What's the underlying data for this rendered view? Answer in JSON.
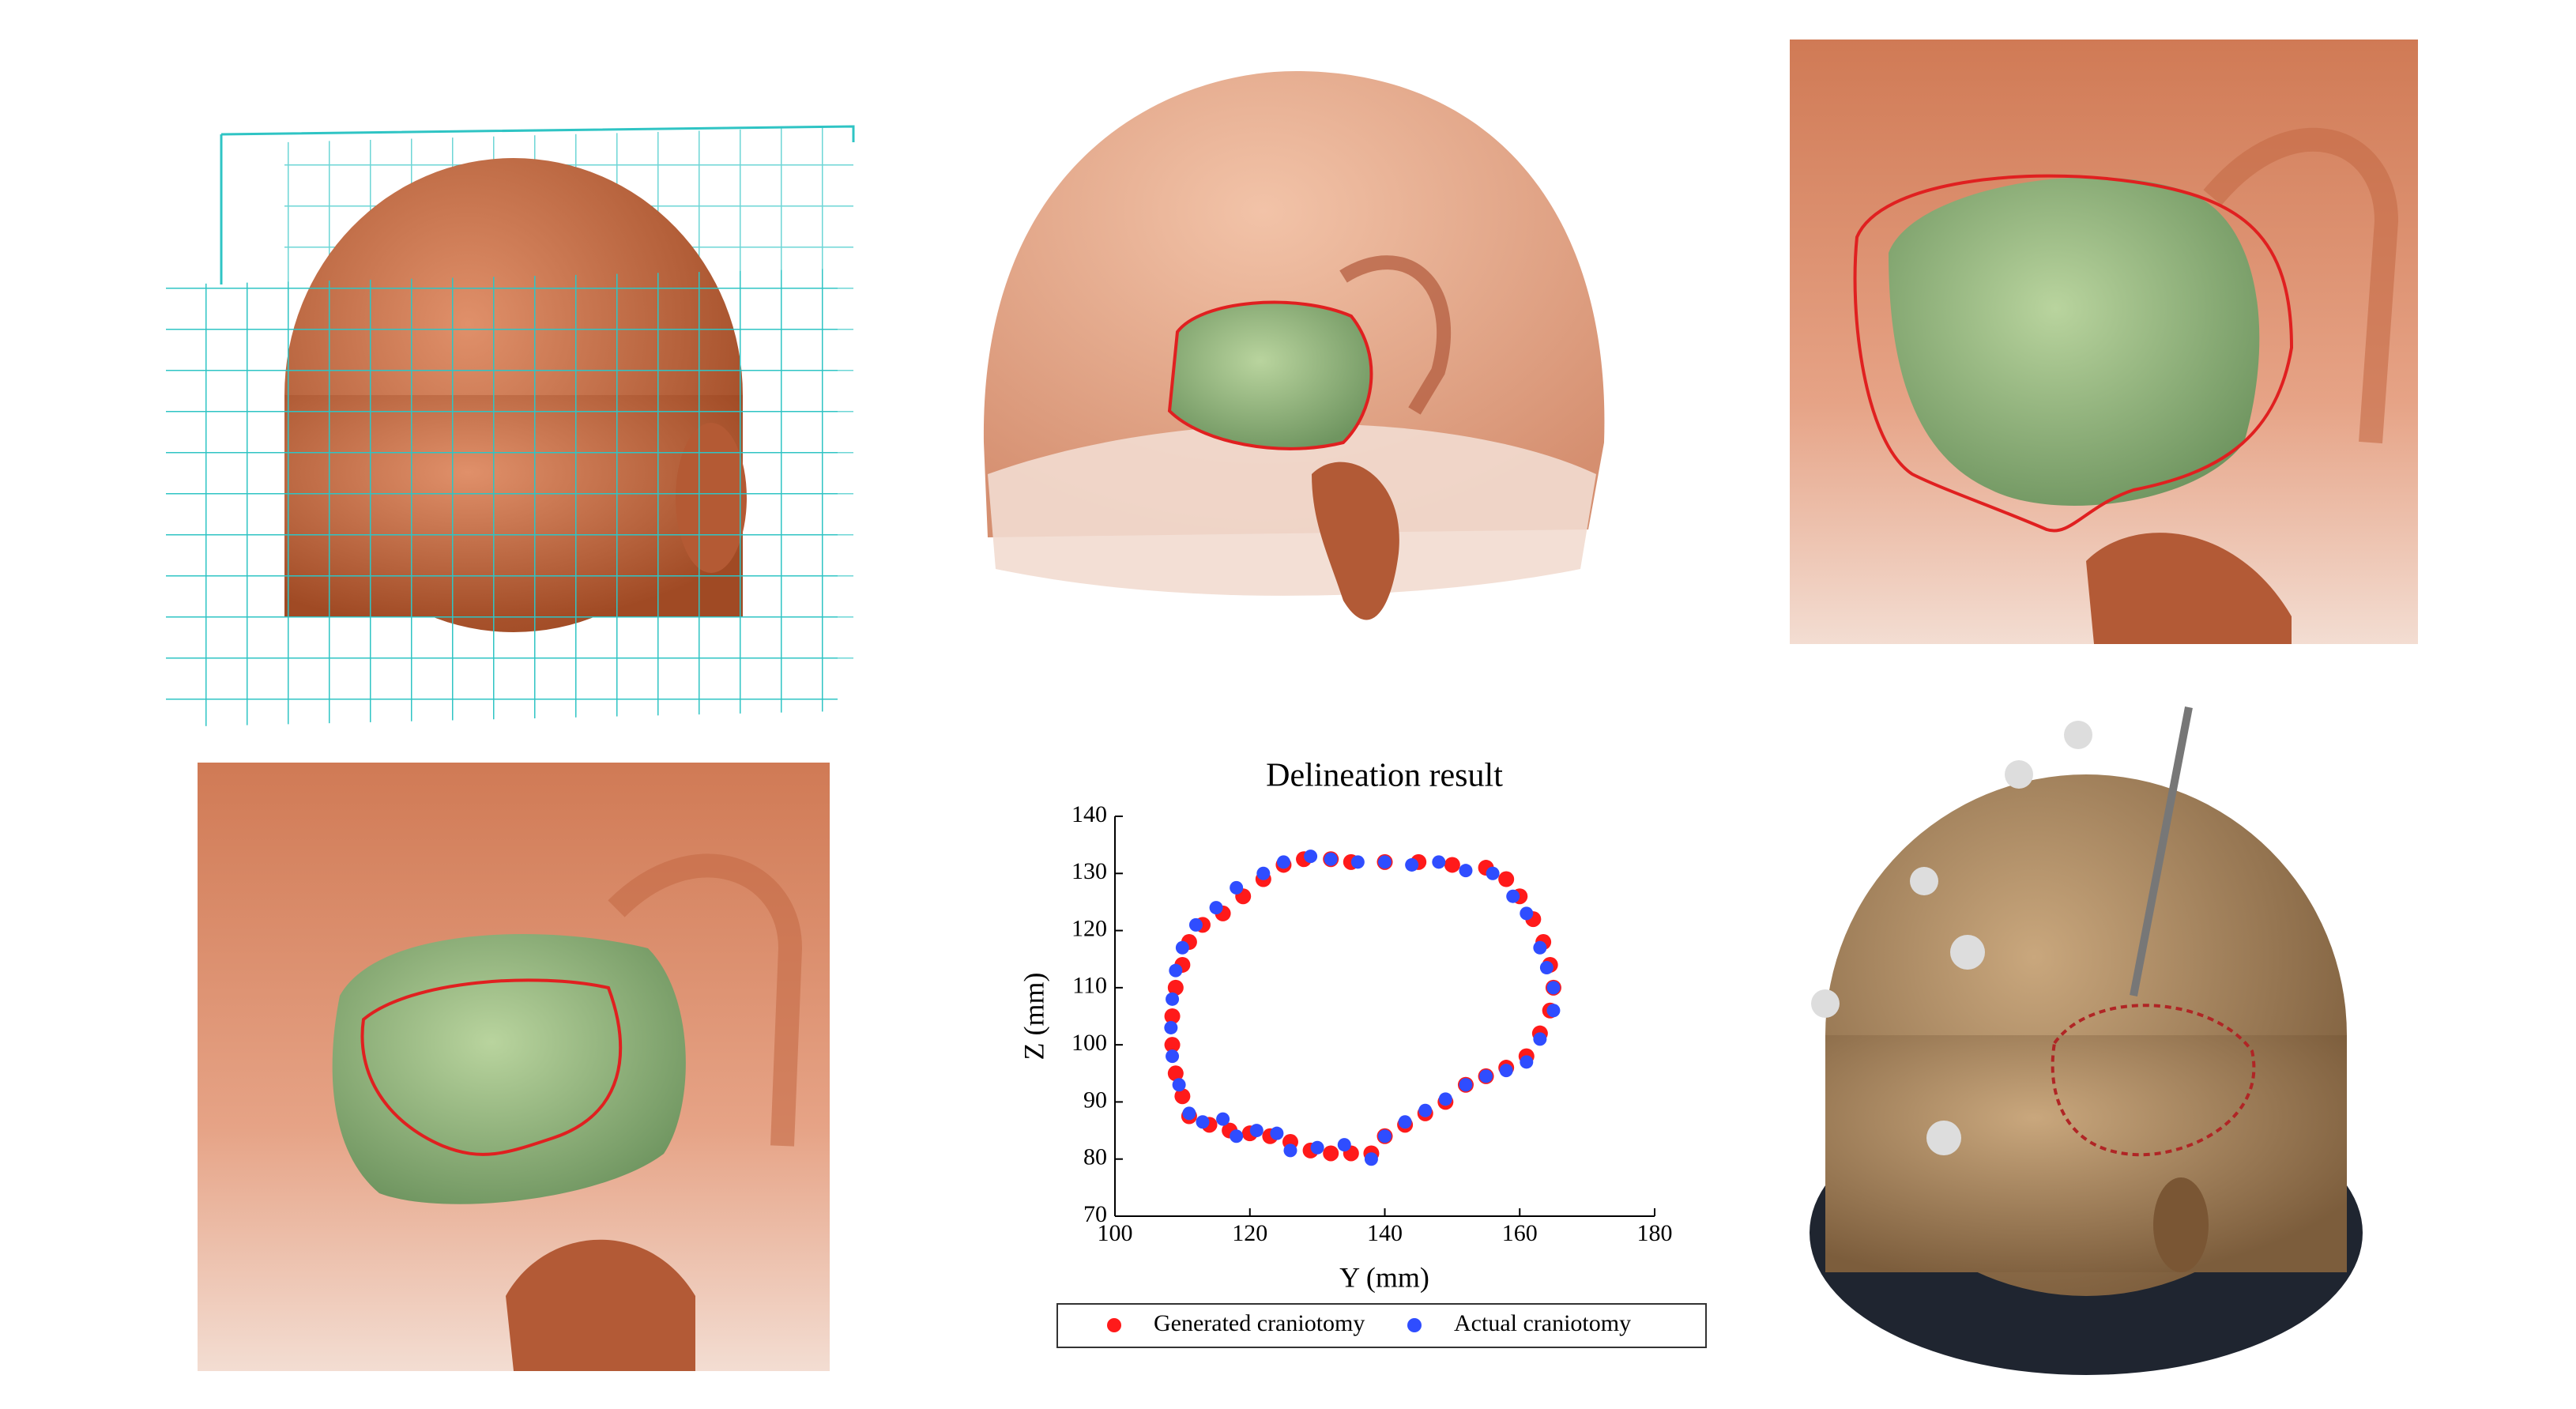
{
  "chart_data": {
    "type": "scatter",
    "title": "Delineation result",
    "x_label": "Y (mm)",
    "y_label": "Z (mm)",
    "xlim": [
      100,
      180
    ],
    "ylim": [
      70,
      140
    ],
    "xticks": [
      100,
      120,
      140,
      160,
      180
    ],
    "yticks": [
      70,
      80,
      90,
      100,
      110,
      120,
      130,
      140
    ],
    "legend": "bottom",
    "series": [
      {
        "name": "Generated craniotomy",
        "color": "#ff1a1a",
        "x": [
          125,
          128,
          132,
          135,
          140,
          145,
          150,
          155,
          158,
          160,
          162,
          163.5,
          164.5,
          165,
          164.5,
          163,
          161,
          158,
          155,
          152,
          149,
          146,
          143,
          140,
          138,
          135,
          132,
          129,
          126,
          123,
          120,
          117,
          114,
          111,
          110,
          109,
          108.5,
          108.5,
          109,
          110,
          111,
          113,
          116,
          119,
          122
        ],
        "values": [
          131.5,
          132.5,
          132.5,
          132,
          132,
          132,
          131.5,
          131,
          129,
          126,
          122,
          118,
          114,
          110,
          106,
          102,
          98,
          96,
          94.5,
          93,
          90,
          88,
          86,
          84,
          81,
          81,
          81,
          81.5,
          83,
          84,
          84.5,
          85,
          86,
          87.5,
          91,
          95,
          100,
          105,
          110,
          114,
          118,
          121,
          123,
          126,
          129
        ]
      },
      {
        "name": "Actual craniotomy",
        "color": "#2f4dff",
        "x": [
          129,
          125,
          122,
          118,
          115,
          112,
          110,
          109,
          108.5,
          108.3,
          108.5,
          109.5,
          111,
          113,
          116,
          118,
          121,
          124,
          126,
          130,
          134,
          138,
          140,
          143,
          146,
          149,
          152,
          155,
          158,
          161,
          163,
          165,
          165,
          164,
          163,
          161,
          159,
          156,
          152,
          148,
          144,
          140,
          136,
          132
        ],
        "values": [
          133,
          132,
          130,
          127.5,
          124,
          121,
          117,
          113,
          108,
          103,
          98,
          93,
          88,
          86.5,
          87,
          84,
          85,
          84.5,
          81.5,
          82,
          82.5,
          80,
          84,
          86.5,
          88.5,
          90.5,
          93,
          94.5,
          95.5,
          97,
          101,
          106,
          110,
          113.5,
          117,
          123,
          126,
          130,
          130.5,
          132,
          131.5,
          132,
          132,
          132.5
        ]
      }
    ]
  }
}
